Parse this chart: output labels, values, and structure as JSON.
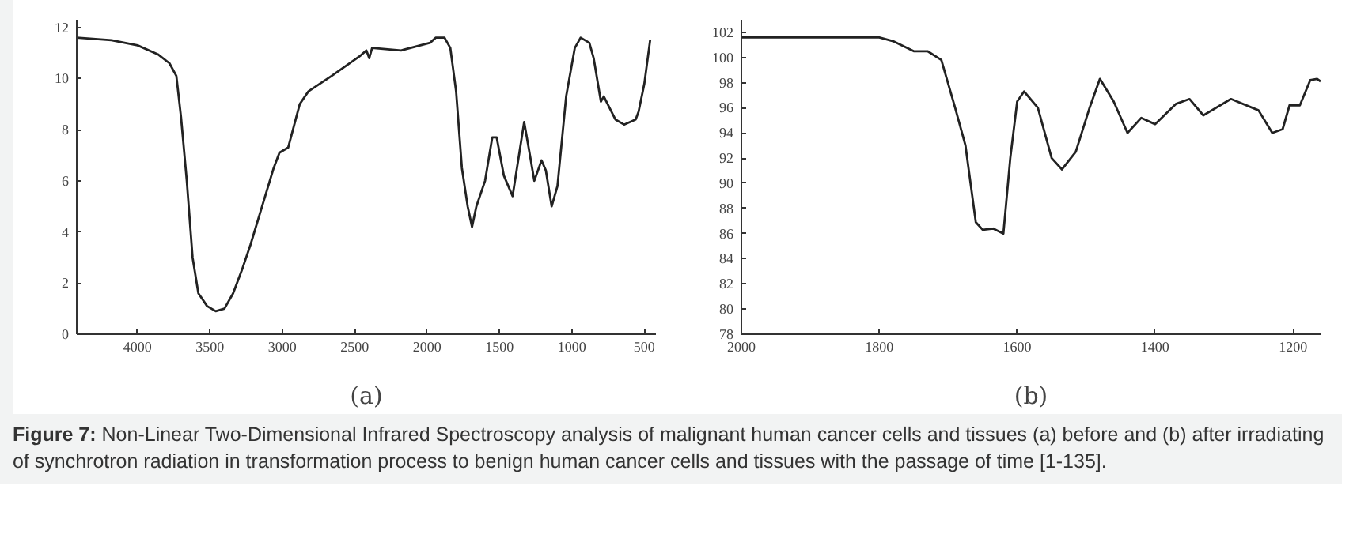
{
  "chart_data": [
    {
      "type": "line",
      "xlabel": "(a)",
      "xlim": [
        4420,
        420
      ],
      "ylim": [
        0,
        12.3
      ],
      "xticks": [
        4000,
        3500,
        3000,
        2500,
        2000,
        1500,
        1000,
        500
      ],
      "yticks": [
        0,
        2,
        4,
        6,
        8,
        10,
        12
      ],
      "grid": false,
      "marker": "none",
      "line_style": "solid",
      "series": [
        {
          "color": "#222222",
          "x": [
            4420,
            4180,
            4000,
            3860,
            3780,
            3732,
            3700,
            3660,
            3620,
            3580,
            3520,
            3460,
            3400,
            3340,
            3280,
            3220,
            3140,
            3060,
            3020,
            2960,
            2880,
            2820,
            2660,
            2460,
            2420,
            2400,
            2380,
            2180,
            1980,
            1940,
            1880,
            1840,
            1800,
            1760,
            1720,
            1690,
            1660,
            1600,
            1550,
            1520,
            1470,
            1410,
            1330,
            1290,
            1260,
            1210,
            1180,
            1140,
            1100,
            1040,
            980,
            940,
            880,
            850,
            800,
            780,
            700,
            640,
            560,
            540,
            500,
            460
          ],
          "values": [
            11.6,
            11.5,
            11.3,
            10.95,
            10.6,
            10.1,
            8.5,
            6,
            3,
            1.6,
            1.1,
            0.9,
            1.0,
            1.6,
            2.5,
            3.5,
            5,
            6.5,
            7.1,
            7.3,
            9,
            9.5,
            10.1,
            10.9,
            11.1,
            10.8,
            11.2,
            11.1,
            11.4,
            11.6,
            11.6,
            11.2,
            9.5,
            6.5,
            5,
            4.2,
            5,
            6,
            7.7,
            7.7,
            6.2,
            5.4,
            8.3,
            7,
            6,
            6.8,
            6.4,
            5,
            5.8,
            9.3,
            11.2,
            11.6,
            11.4,
            10.8,
            9.1,
            9.3,
            8.4,
            8.2,
            8.4,
            8.7,
            9.8,
            11.5
          ]
        }
      ]
    },
    {
      "type": "line",
      "xlabel": "(b)",
      "xlim": [
        2000,
        1160
      ],
      "ylim": [
        78,
        103
      ],
      "xticks": [
        2000,
        1800,
        1600,
        1400,
        1200
      ],
      "yticks": [
        78,
        80,
        82,
        84,
        86,
        88,
        90,
        92,
        94,
        96,
        98,
        100,
        102
      ],
      "grid": false,
      "marker": "none",
      "line_style": "solid",
      "series": [
        {
          "color": "#222222",
          "x": [
            2000,
            1800,
            1780,
            1750,
            1730,
            1710,
            1690,
            1675,
            1660,
            1650,
            1635,
            1620,
            1610,
            1600,
            1590,
            1570,
            1550,
            1535,
            1515,
            1495,
            1480,
            1460,
            1440,
            1420,
            1400,
            1370,
            1350,
            1330,
            1290,
            1250,
            1230,
            1215,
            1205,
            1190,
            1175,
            1165,
            1160
          ],
          "values": [
            101.6,
            101.6,
            101.3,
            100.5,
            100.5,
            99.8,
            96,
            93,
            86.9,
            86.3,
            86.4,
            86,
            92,
            96.5,
            97.3,
            96,
            92,
            91.1,
            92.5,
            96,
            98.3,
            96.5,
            94,
            95.2,
            94.7,
            96.3,
            96.7,
            95.4,
            96.7,
            95.8,
            94,
            94.3,
            96.2,
            96.2,
            98.2,
            98.3,
            98.1
          ]
        }
      ],
      "annotations": [
        "Figure 7: Non-Linear Two-Dimensional Infrared Spectroscopy analysis of malignant human cancer cells and tissues (a) before and (b) after irradiating of synchrotron radiation in transformation process to benign human cancer cells and tissues with the passage of time [1-135]."
      ]
    }
  ]
}
